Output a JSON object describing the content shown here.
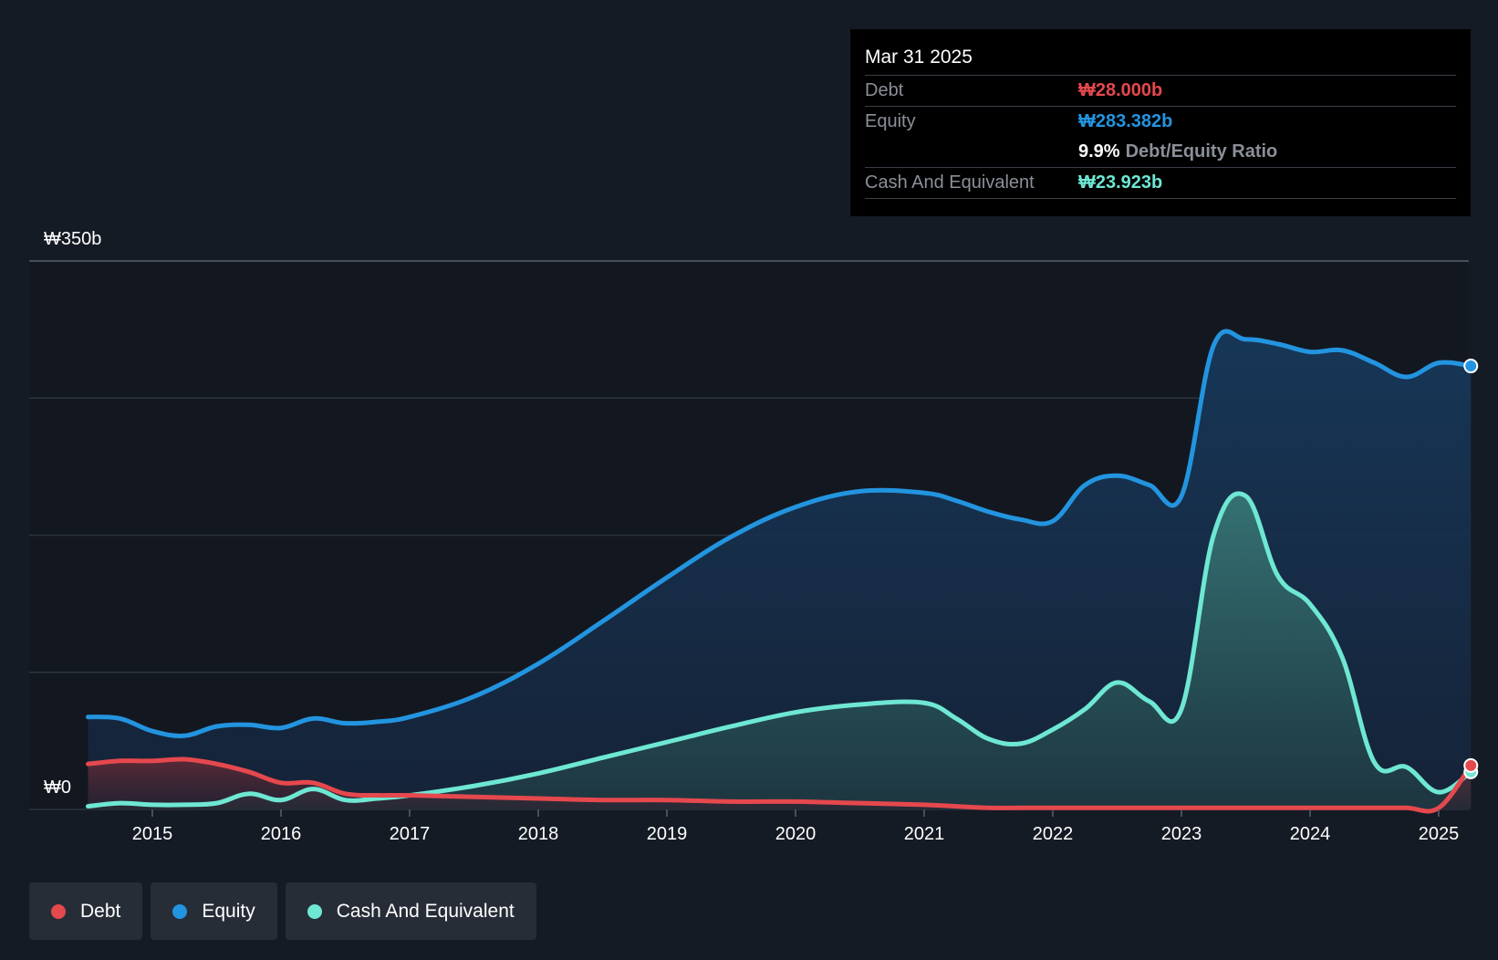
{
  "tooltip": {
    "date": "Mar 31 2025",
    "debt_label": "Debt",
    "debt_value": "₩28.000b",
    "equity_label": "Equity",
    "equity_value": "₩283.382b",
    "ratio_value": "9.9%",
    "ratio_label": "Debt/Equity Ratio",
    "cash_label": "Cash And Equivalent",
    "cash_value": "₩23.923b"
  },
  "legend": {
    "debt": "Debt",
    "equity": "Equity",
    "cash": "Cash And Equivalent"
  },
  "colors": {
    "debt": "#e5484d",
    "equity": "#2394df",
    "cash": "#6ee7d3"
  },
  "chart_data": {
    "type": "area",
    "title": "",
    "xlabel": "",
    "ylabel": "",
    "y_top_label": "₩350b",
    "y_bottom_label": "₩0",
    "ylim": [
      0,
      350
    ],
    "x_ticks": [
      "2015",
      "2016",
      "2017",
      "2018",
      "2019",
      "2020",
      "2021",
      "2022",
      "2023",
      "2024",
      "2025"
    ],
    "x_tick_values": [
      2015,
      2016,
      2017,
      2018,
      2019,
      2020,
      2021,
      2022,
      2023,
      2024,
      2025
    ],
    "series": [
      {
        "name": "Equity",
        "x": [
          2014.5,
          2014.75,
          2015.0,
          2015.25,
          2015.5,
          2015.75,
          2016.0,
          2016.25,
          2016.5,
          2016.75,
          2017.0,
          2017.5,
          2018.0,
          2018.5,
          2019.0,
          2019.5,
          2020.0,
          2020.5,
          2021.0,
          2021.25,
          2021.5,
          2021.75,
          2022.0,
          2022.25,
          2022.5,
          2022.75,
          2023.0,
          2023.25,
          2023.5,
          2023.75,
          2024.0,
          2024.25,
          2024.5,
          2024.75,
          2025.0,
          2025.25
        ],
        "values": [
          59,
          58,
          50,
          47,
          53,
          54,
          52,
          58,
          55,
          56,
          59,
          72,
          93,
          120,
          148,
          174,
          193,
          203,
          202,
          197,
          190,
          185,
          184,
          207,
          213,
          207,
          200,
          296,
          300,
          297,
          292,
          293,
          285,
          276,
          285,
          283
        ]
      },
      {
        "name": "Cash And Equivalent",
        "x": [
          2014.5,
          2014.75,
          2015.0,
          2015.25,
          2015.5,
          2015.75,
          2016.0,
          2016.25,
          2016.5,
          2016.75,
          2017.0,
          2017.5,
          2018.0,
          2018.5,
          2019.0,
          2019.5,
          2020.0,
          2020.5,
          2021.0,
          2021.25,
          2021.5,
          2021.75,
          2022.0,
          2022.25,
          2022.5,
          2022.75,
          2023.0,
          2023.25,
          2023.5,
          2023.75,
          2024.0,
          2024.25,
          2024.5,
          2024.75,
          2025.0,
          2025.25
        ],
        "values": [
          2,
          4,
          3,
          3,
          4,
          10,
          6,
          13,
          6,
          7,
          9,
          15,
          23,
          33,
          43,
          53,
          62,
          67,
          68,
          58,
          45,
          42,
          51,
          64,
          81,
          69,
          64,
          175,
          200,
          149,
          131,
          97,
          30,
          27,
          11,
          24
        ]
      },
      {
        "name": "Debt",
        "x": [
          2014.5,
          2014.75,
          2015.0,
          2015.25,
          2015.5,
          2015.75,
          2016.0,
          2016.25,
          2016.5,
          2016.75,
          2017.0,
          2017.5,
          2018.0,
          2018.5,
          2019.0,
          2019.5,
          2020.0,
          2020.5,
          2021.0,
          2021.25,
          2021.5,
          2021.75,
          2022.0,
          2022.25,
          2022.5,
          2022.75,
          2023.0,
          2023.25,
          2023.5,
          2023.75,
          2024.0,
          2024.25,
          2024.5,
          2024.75,
          2025.0,
          2025.25
        ],
        "values": [
          29,
          31,
          31,
          32,
          29,
          24,
          17,
          17,
          10,
          9,
          9,
          8,
          7,
          6,
          6,
          5,
          5,
          4,
          3,
          2,
          1,
          1,
          1,
          1,
          1,
          1,
          1,
          1,
          1,
          1,
          1,
          1,
          1,
          1,
          1,
          28
        ]
      }
    ]
  }
}
